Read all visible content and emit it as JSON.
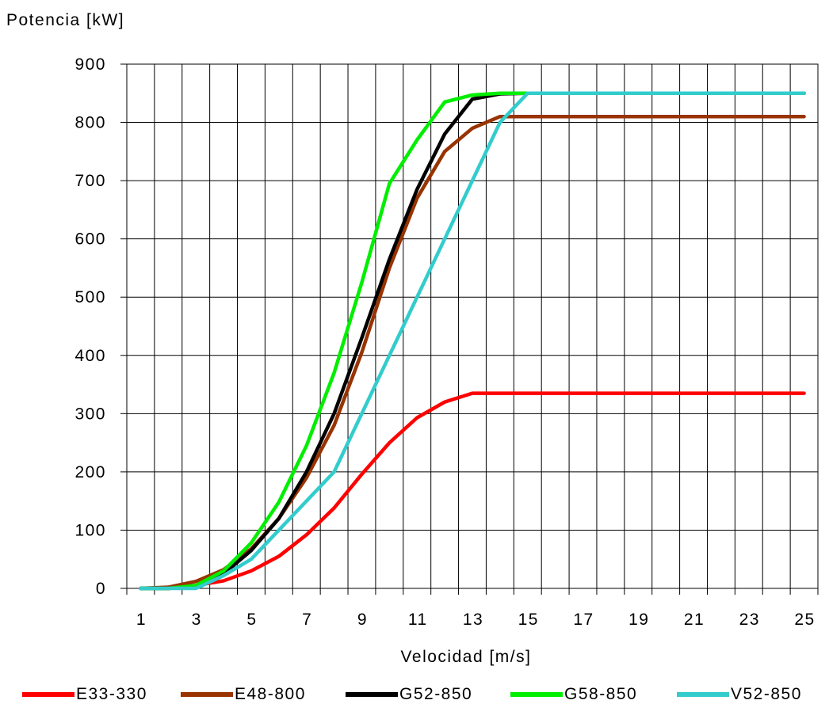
{
  "chart_data": {
    "type": "line",
    "title": "",
    "ylabel": "Potencia [kW]",
    "xlabel": "Velocidad [m/s]",
    "xlim": [
      0.5,
      25.5
    ],
    "ylim": [
      0,
      900
    ],
    "x_ticks": [
      1,
      3,
      5,
      7,
      9,
      11,
      13,
      15,
      17,
      19,
      21,
      23,
      25
    ],
    "y_ticks": [
      0,
      100,
      200,
      300,
      400,
      500,
      600,
      700,
      800,
      900
    ],
    "grid": true,
    "legend_position": "bottom",
    "x": [
      1,
      2,
      3,
      4,
      5,
      6,
      7,
      8,
      9,
      10,
      11,
      12,
      13,
      14,
      15,
      16,
      17,
      18,
      19,
      20,
      21,
      22,
      23,
      24,
      25
    ],
    "series": [
      {
        "name": "E33-330",
        "color": "#ff0000",
        "values": [
          0,
          0,
          5,
          13,
          30,
          55,
          92,
          138,
          196,
          250,
          293,
          320,
          335,
          335,
          335,
          335,
          335,
          335,
          335,
          335,
          335,
          335,
          335,
          335,
          335
        ]
      },
      {
        "name": "E48-800",
        "color": "#993300",
        "values": [
          0,
          2,
          12,
          32,
          68,
          120,
          190,
          280,
          405,
          550,
          670,
          750,
          790,
          810,
          810,
          810,
          810,
          810,
          810,
          810,
          810,
          810,
          810,
          810,
          810
        ]
      },
      {
        "name": "G52-850",
        "color": "#000000",
        "values": [
          0,
          0,
          3,
          25,
          65,
          120,
          200,
          300,
          430,
          565,
          685,
          780,
          840,
          849,
          850,
          850,
          850,
          850,
          850,
          850,
          850,
          850,
          850,
          850,
          850
        ]
      },
      {
        "name": "G58-850",
        "color": "#00ee00",
        "values": [
          0,
          0,
          5,
          30,
          78,
          148,
          245,
          370,
          525,
          695,
          770,
          835,
          847,
          850,
          850,
          850,
          850,
          850,
          850,
          850,
          850,
          850,
          850,
          850,
          850
        ]
      },
      {
        "name": "V52-850",
        "color": "#33cccc",
        "values": [
          0,
          0,
          0,
          22,
          50,
          100,
          150,
          200,
          300,
          400,
          500,
          600,
          700,
          800,
          850,
          850,
          850,
          850,
          850,
          850,
          850,
          850,
          850,
          850,
          850
        ]
      }
    ]
  }
}
